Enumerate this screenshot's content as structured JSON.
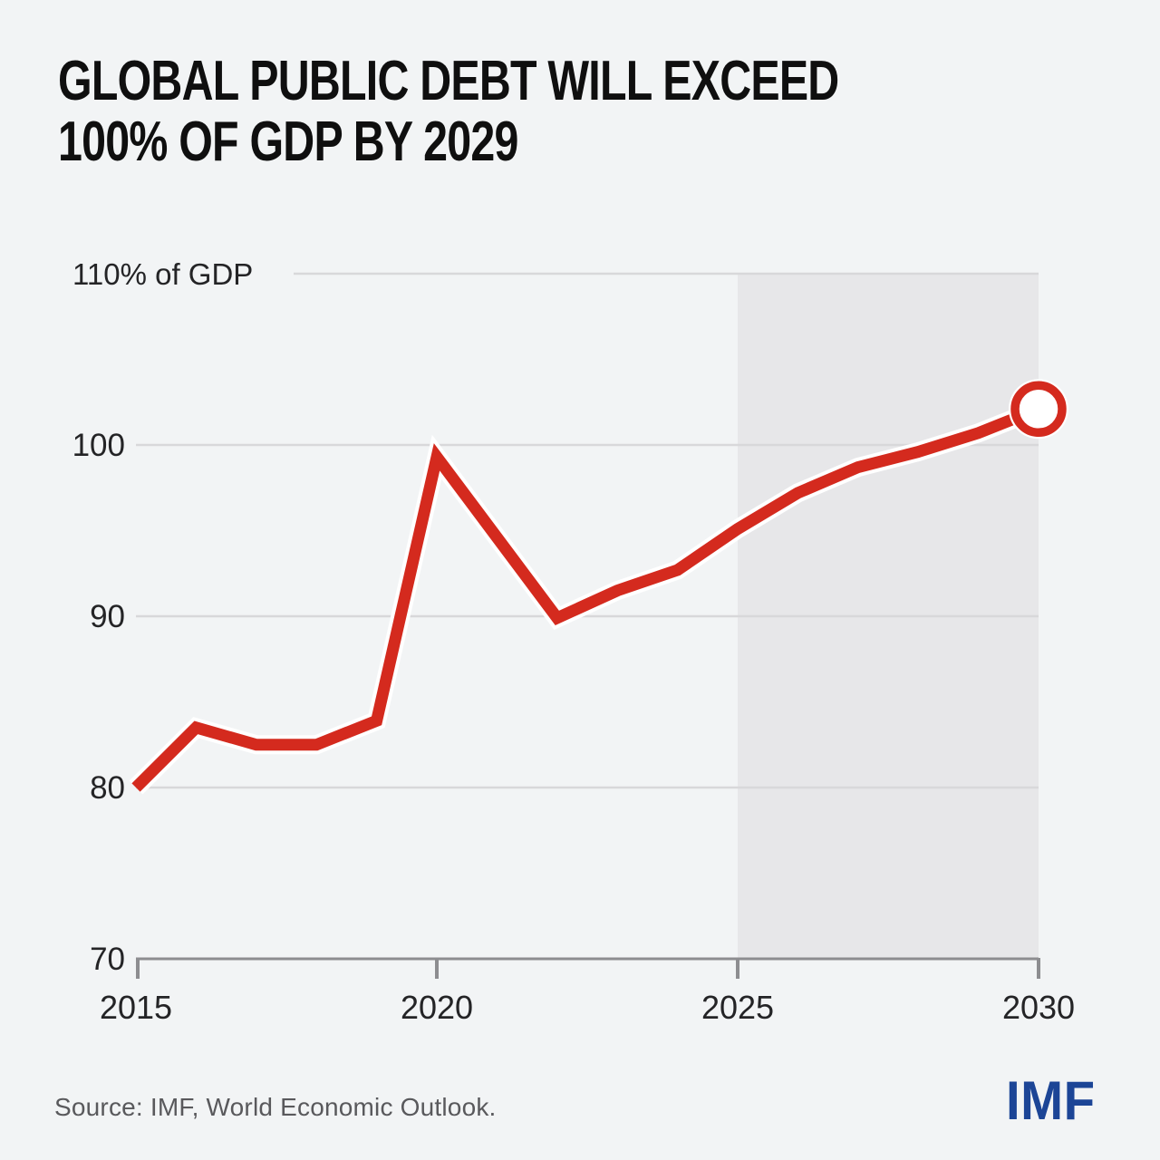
{
  "header": {
    "line1": "GLOBAL PUBLIC DEBT WILL EXCEED",
    "line2": "100% OF GDP BY 2029"
  },
  "footer": {
    "source": "Source: IMF, World Economic Outlook.",
    "logo": "IMF"
  },
  "chart_data": {
    "type": "line",
    "title": "GLOBAL PUBLIC DEBT WILL EXCEED 100% OF GDP BY 2029",
    "ylabel": "110% of GDP",
    "xlabel": "",
    "x": [
      2015,
      2016,
      2017,
      2018,
      2019,
      2020,
      2021,
      2022,
      2023,
      2024,
      2025,
      2026,
      2027,
      2028,
      2029,
      2030
    ],
    "series": [
      {
        "name": "Global public debt, percent of GDP",
        "values": [
          80.0,
          83.5,
          82.5,
          82.5,
          83.9,
          99.3,
          94.6,
          89.9,
          91.5,
          92.7,
          95.1,
          97.2,
          98.7,
          99.6,
          100.7,
          102.1
        ]
      }
    ],
    "xlim": [
      2015,
      2030
    ],
    "ylim": [
      70,
      110
    ],
    "xticks": [
      2015,
      2020,
      2025,
      2030
    ],
    "yticks": [
      70,
      80,
      90,
      100,
      110
    ],
    "ytick_top_label": "110% of GDP",
    "projection_band": {
      "start": 2025,
      "end": 2030
    },
    "endpoint_marker": {
      "x": 2030,
      "value": 102.1,
      "style": "open-circle"
    },
    "grid": "horizontal",
    "legend": "none",
    "colors": {
      "line": "#d42a1e",
      "line_casing": "#ffffff",
      "projection_band": "#e7e7e9",
      "grid": "#d8d8da",
      "axis": "#8d8d90",
      "background": "#f2f4f5",
      "title_text": "#0f0f0f",
      "label_text": "#242426",
      "source_text": "#59595c",
      "logo_blue": "#1c4596"
    }
  }
}
